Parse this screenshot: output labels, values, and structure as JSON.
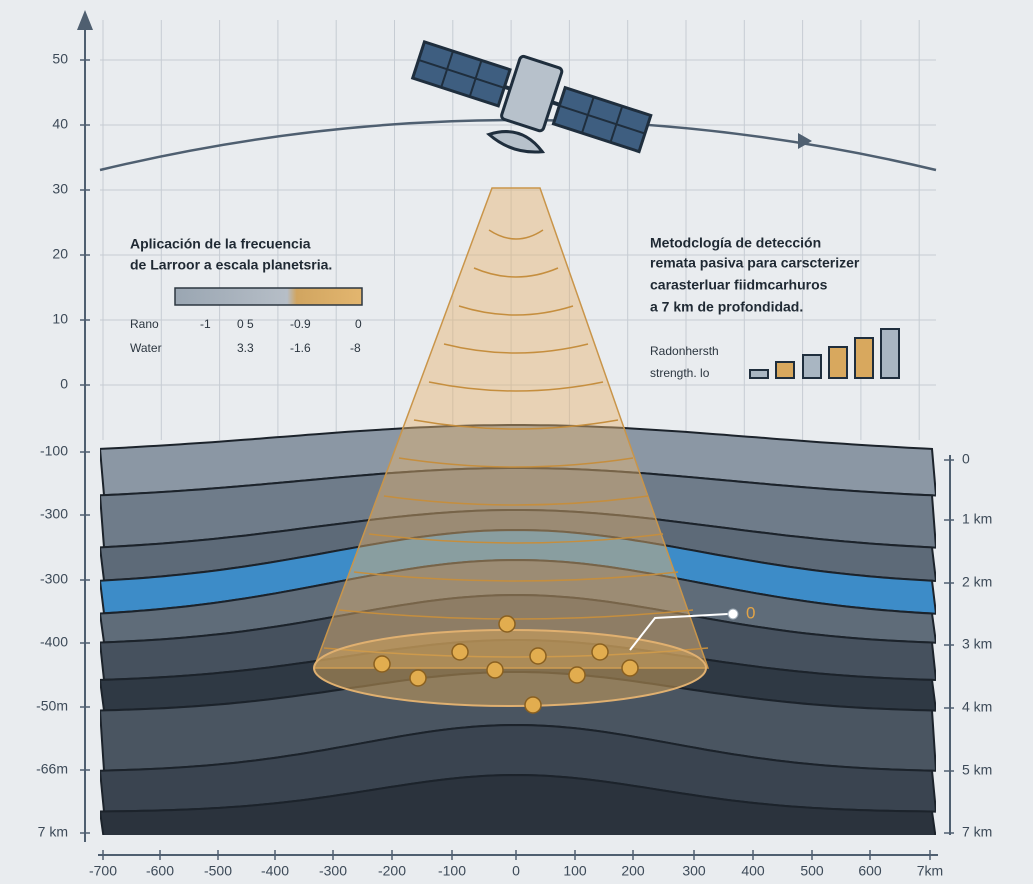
{
  "left_axis": {
    "labels": [
      "50",
      "40",
      "30",
      "20",
      "10",
      "0",
      "-100",
      "-300",
      "-300",
      "-400",
      "-50m",
      "-66m",
      "7 km"
    ]
  },
  "bottom_axis": {
    "labels": [
      "-700",
      "-600",
      "-500",
      "-400",
      "-300",
      "-200",
      "-100",
      "0",
      "100",
      "200",
      "300",
      "400",
      "500",
      "600",
      "7km"
    ]
  },
  "right_axis": {
    "labels": [
      "0",
      "1 km",
      "2 km",
      "3 km",
      "4 km",
      "5 km",
      "7 km"
    ]
  },
  "legend": {
    "title": [
      "Aplicación de la frecuencia",
      "de Larroor a escala planetsria."
    ],
    "rows": [
      [
        "Rano",
        "-1",
        "0 5",
        "-0.9",
        "0"
      ],
      [
        "Water",
        "3.3",
        "-1.6",
        "-8"
      ]
    ]
  },
  "method": {
    "title": [
      "Metodclogía de detección",
      "remata pasiva para carscterizer",
      "carasterluar fiidmcarhuros",
      "a 7 km de profondidad."
    ],
    "strength_label": [
      "Radonhersth",
      "strength. lo"
    ]
  },
  "annotation": {
    "label": "0"
  }
}
